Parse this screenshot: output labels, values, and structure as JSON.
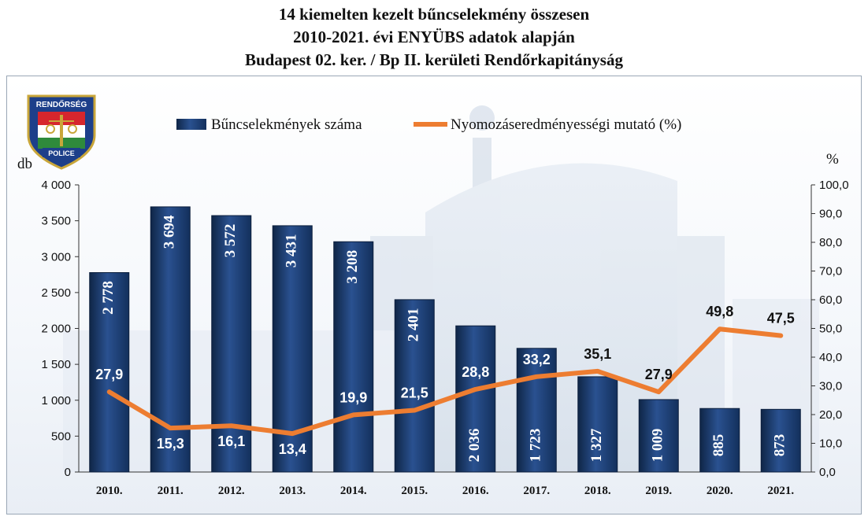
{
  "header": {
    "line1": "14 kiemelten kezelt bűncselekmény összesen",
    "line2": "2010-2021. évi ENYÜBS adatok alapján",
    "line3": "Budapest 02. ker.  /  Bp II. kerületi Rendőrkapitányság"
  },
  "logo": {
    "top_text": "RENDŐRSÉG",
    "bottom_text": "POLICE"
  },
  "chart_data": {
    "type": "bar",
    "categories": [
      "2010.",
      "2011.",
      "2012.",
      "2013.",
      "2014.",
      "2015.",
      "2016.",
      "2017.",
      "2018.",
      "2019.",
      "2020.",
      "2021."
    ],
    "series": [
      {
        "name": "Bűncselekmények száma",
        "type": "bar",
        "axis": "left",
        "values": [
          2778,
          3694,
          3572,
          3431,
          3208,
          2401,
          2036,
          1723,
          1327,
          1009,
          885,
          873
        ],
        "labels": [
          "2 778",
          "3 694",
          "3 572",
          "3 431",
          "3 208",
          "2 401",
          "2 036",
          "1 723",
          "1 327",
          "1 009",
          "885",
          "873"
        ],
        "color": "#1b3a6b"
      },
      {
        "name": "Nyomozáseredményességi mutató (%)",
        "type": "line",
        "axis": "right",
        "values": [
          27.9,
          15.3,
          16.1,
          13.4,
          19.9,
          21.5,
          28.8,
          33.2,
          35.1,
          27.9,
          49.8,
          47.5
        ],
        "labels": [
          "27,9",
          "15,3",
          "16,1",
          "13,4",
          "19,9",
          "21,5",
          "28,8",
          "33,2",
          "35,1",
          "27,9",
          "49,8",
          "47,5"
        ],
        "color": "#ed7d31"
      }
    ],
    "left_axis": {
      "unit": "db",
      "ylim": [
        0,
        4000
      ],
      "ticks": [
        0,
        500,
        1000,
        1500,
        2000,
        2500,
        3000,
        3500,
        4000
      ],
      "tick_labels": [
        "0",
        "500",
        "1 000",
        "1 500",
        "2 000",
        "2 500",
        "3 000",
        "3 500",
        "4 000"
      ]
    },
    "right_axis": {
      "unit": "%",
      "ylim": [
        0,
        100
      ],
      "ticks": [
        0,
        10,
        20,
        30,
        40,
        50,
        60,
        70,
        80,
        90,
        100
      ],
      "tick_labels": [
        "0,0",
        "10,0",
        "20,0",
        "30,0",
        "40,0",
        "50,0",
        "60,0",
        "70,0",
        "80,0",
        "90,0",
        "100,0"
      ]
    },
    "grid": false,
    "legend": "top"
  }
}
